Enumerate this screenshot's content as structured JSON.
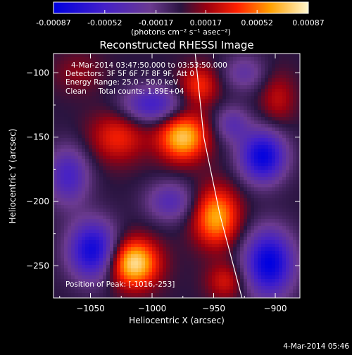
{
  "chart_data": {
    "type": "heatmap",
    "title": "Reconstructed RHESSI Image",
    "xlabel": "Heliocentric X (arcsec)",
    "ylabel": "Heliocentric Y (arcsec)",
    "xlim": [
      -1080,
      -880
    ],
    "ylim": [
      -275,
      -85
    ],
    "x_ticks": [
      -1050,
      -1000,
      -950,
      -900
    ],
    "y_ticks": [
      -250,
      -200,
      -150,
      -100
    ],
    "colorbar": {
      "min": -0.00087,
      "max": 0.00087,
      "ticks": [
        "-0.00087",
        "-0.00052",
        "-0.00017",
        "0.00017",
        "0.00052",
        "0.00087"
      ],
      "unit_label": "(photons cm⁻² s⁻¹ asec⁻²)"
    },
    "annotations": {
      "time_range": "4-Mar-2014 03:47:50.000 to 03:53:50.000",
      "detectors": "Detectors: 3F 5F 6F 7F 8F 9F, Att 0",
      "energy_range": "Energy Range: 25.0 - 50.0 keV",
      "clean_counts": "Clean     Total counts: 1.89E+04",
      "peak_position": "Position of Peak: [-1016,-253]"
    },
    "peak": {
      "x": -1016,
      "y": -253
    },
    "sources": [
      {
        "x": -1015,
        "y": -248,
        "value": 0.00082,
        "sx": 14,
        "sy": 13
      },
      {
        "x": -975,
        "y": -150,
        "value": 0.00072,
        "sx": 14,
        "sy": 13
      },
      {
        "x": -948,
        "y": -212,
        "value": 0.00064,
        "sx": 13,
        "sy": 16
      },
      {
        "x": -1028,
        "y": -150,
        "value": 0.00036,
        "sx": 16,
        "sy": 14
      },
      {
        "x": -962,
        "y": -110,
        "value": 0.00038,
        "sx": 11,
        "sy": 11
      },
      {
        "x": -898,
        "y": -120,
        "value": 0.00024,
        "sx": 10,
        "sy": 14
      },
      {
        "x": -1060,
        "y": -100,
        "value": 0.00015,
        "sx": 14,
        "sy": 11
      },
      {
        "x": -940,
        "y": -262,
        "value": 0.0003,
        "sx": 11,
        "sy": 10
      },
      {
        "x": -1048,
        "y": -238,
        "value": -0.0008,
        "sx": 14,
        "sy": 16
      },
      {
        "x": -910,
        "y": -165,
        "value": -0.00084,
        "sx": 13,
        "sy": 14
      },
      {
        "x": -905,
        "y": -248,
        "value": -0.00087,
        "sx": 14,
        "sy": 18
      },
      {
        "x": -1000,
        "y": -125,
        "value": -0.00055,
        "sx": 17,
        "sy": 10
      },
      {
        "x": -1068,
        "y": -180,
        "value": -0.0005,
        "sx": 12,
        "sy": 16
      },
      {
        "x": -985,
        "y": -200,
        "value": -0.0004,
        "sx": 14,
        "sy": 11
      },
      {
        "x": -935,
        "y": -140,
        "value": -0.00035,
        "sx": 10,
        "sy": 10
      },
      {
        "x": -925,
        "y": -100,
        "value": -0.0003,
        "sx": 12,
        "sy": 10
      }
    ],
    "limb": [
      {
        "x": -965,
        "y": -85
      },
      {
        "x": -958,
        "y": -150
      },
      {
        "x": -945,
        "y": -210
      },
      {
        "x": -927,
        "y": -275
      }
    ],
    "colormap": [
      {
        "t": 0.0,
        "color": "#0000e0"
      },
      {
        "t": 0.2,
        "color": "#4420c8"
      },
      {
        "t": 0.38,
        "color": "#6b3a90"
      },
      {
        "t": 0.5,
        "color": "#2a1440"
      },
      {
        "t": 0.6,
        "color": "#9a0010"
      },
      {
        "t": 0.72,
        "color": "#ff2000"
      },
      {
        "t": 0.85,
        "color": "#ffa000"
      },
      {
        "t": 1.0,
        "color": "#fff8d0"
      }
    ]
  },
  "footer_date": "4-Mar-2014 05:46"
}
